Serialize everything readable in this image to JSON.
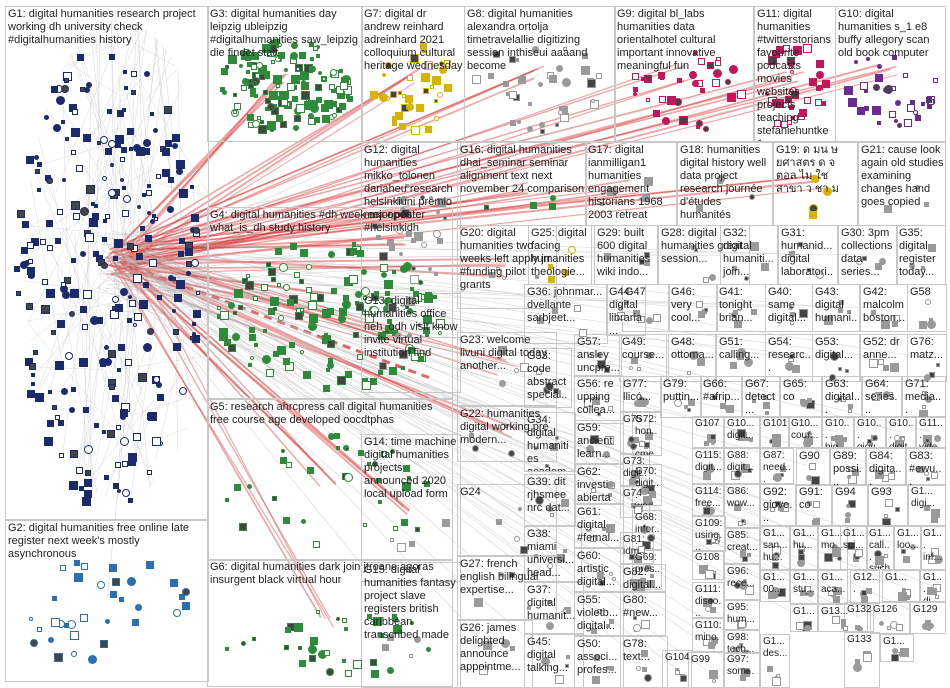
{
  "graph": {
    "type": "clustered-network",
    "groups": [
      {
        "id": "G1",
        "label": "G1: digital humanities research project working dh university check #digitalhumanities history",
        "density": "high",
        "palette": "navy"
      },
      {
        "id": "G2",
        "label": "G2: digital humanities free online late register next week's mostly asynchronous",
        "density": "medium",
        "palette": "blue"
      },
      {
        "id": "G3",
        "label": "G3: digital humanities day leipzig ubleipzig #digitalhumanities saw_leipzig die findet statt",
        "density": "high",
        "palette": "green"
      },
      {
        "id": "G4",
        "label": "G4: digital humanities #dh week ma open what_is_dh study history",
        "density": "high",
        "palette": "green"
      },
      {
        "id": "G5",
        "label": "G5: research ahrcpress call digital humanities free course age developed oocdtphas",
        "density": "medium",
        "palette": "green"
      },
      {
        "id": "G6",
        "label": "G6: digital humanities dark join jtroane agoras insurgent black virtual hour",
        "density": "medium",
        "palette": "green"
      },
      {
        "id": "G7",
        "label": "G7: digital dr andrew reinhard adreinhard 2021 colloquium cultural heritage wednesday",
        "density": "medium",
        "palette": "yellow"
      },
      {
        "id": "G8",
        "label": "G8: digital humanities alexandra ortolja timetravelallie digitizing session inthiseui aaaand become",
        "density": "medium",
        "palette": "grey"
      },
      {
        "id": "G9",
        "label": "G9: digital bl_labs humanities data orientalhotel cultural important innovative meaningful fun",
        "density": "medium",
        "palette": "pink"
      },
      {
        "id": "G10",
        "label": "G10: digital humanities s_1 e8 buffy allegory scan old book computer",
        "density": "medium",
        "palette": "purple"
      },
      {
        "id": "G11",
        "label": "G11: digital humanities #twitterstorians favourite podcasts movies websites projects teaching stefaniehuntke1",
        "density": "medium",
        "palette": "pink"
      },
      {
        "id": "G12",
        "label": "G12: digital humanities mikko_tolonen dariaheu research helsinkiuni premio mejor póster #helsinkidh",
        "density": "medium",
        "palette": "grey"
      },
      {
        "id": "G13",
        "label": "G13: digital humanities office neh_odh visit know invite virtual institution find",
        "density": "low",
        "palette": "grey"
      },
      {
        "id": "G14",
        "label": "G14: time machine digital humanities projects announced 2020 local upload form",
        "density": "low",
        "palette": "grey"
      },
      {
        "id": "G15",
        "label": "G15: digital humanities fantasy project slave registers british caribbean transcribed made",
        "density": "low",
        "palette": "grey"
      },
      {
        "id": "G16",
        "label": "G16: digital humanities dhai_seminar seminar alignment text next november 24 comparison",
        "density": "low",
        "palette": "green"
      },
      {
        "id": "G17",
        "label": "G17: digital ianmilligan1 humanities engagement historians 1968 2003 retreat",
        "density": "low",
        "palette": "grey"
      },
      {
        "id": "G18",
        "label": "G18: humanities digital history well data project research journée d'études humanités",
        "density": "low",
        "palette": "grey"
      },
      {
        "id": "G19",
        "label": "G19: ด มน ษยศาสตร ด จ ตอล ไม ใช สาขา ว ชา ม",
        "density": "low",
        "palette": "yellow"
      },
      {
        "id": "G20",
        "label": "G20: digital humanities two weeks left apply jrr #funding pilot grants",
        "density": "low",
        "palette": "grey"
      },
      {
        "id": "G21",
        "label": "G21: cause look again old studies examining changes hand goes copied",
        "density": "low",
        "palette": "grey"
      },
      {
        "id": "G22",
        "label": "G22: humanities digital working pre modern...",
        "density": "low",
        "palette": "grey"
      },
      {
        "id": "G23",
        "label": "G23: welcome livuni digital today another...",
        "density": "low",
        "palette": "grey"
      },
      {
        "id": "G24",
        "label": "G24",
        "density": "low",
        "palette": "grey"
      },
      {
        "id": "G25",
        "label": "G25: digital facing humanities theologie...",
        "density": "low",
        "palette": "yellow"
      },
      {
        "id": "G26",
        "label": "G26: james delighted announce appointme...",
        "density": "low",
        "palette": "grey"
      },
      {
        "id": "G27",
        "label": "G27: french english bilingual expertise...",
        "density": "low",
        "palette": "grey"
      },
      {
        "id": "G28",
        "label": "G28: digital humanities great session...",
        "density": "low",
        "palette": "grey"
      },
      {
        "id": "G29",
        "label": "G29: built 600 digital humanities wiki indo...",
        "density": "low",
        "palette": "grey"
      },
      {
        "id": "G30",
        "label": "G30: 3pm collections data series...",
        "density": "low",
        "palette": "grey"
      },
      {
        "id": "G31",
        "label": "G31: humanid... digital laboratori...",
        "density": "low",
        "palette": "grey"
      },
      {
        "id": "G32",
        "label": "G32: digital humaniti... join...",
        "density": "low",
        "palette": "grey"
      },
      {
        "id": "G33",
        "label": "G33: code abstract special...",
        "density": "low",
        "palette": "grey"
      },
      {
        "id": "G34",
        "label": "G34: digital humanities academ...",
        "density": "low",
        "palette": "grey"
      },
      {
        "id": "G35",
        "label": "G35: digital register today...",
        "density": "low",
        "palette": "grey"
      },
      {
        "id": "G36",
        "label": "G36: johnmar... dvellante sarbjeet...",
        "density": "low",
        "palette": "grey"
      },
      {
        "id": "G37",
        "label": "G37: digital humanit...",
        "density": "low",
        "palette": "grey"
      },
      {
        "id": "G38",
        "label": "G38: miami universi... head...",
        "density": "low",
        "palette": "grey"
      },
      {
        "id": "G39",
        "label": "G39: dit rjhsmee nrc dat...",
        "density": "low",
        "palette": "grey"
      },
      {
        "id": "G40",
        "label": "G40: same digital...",
        "density": "low",
        "palette": "grey"
      },
      {
        "id": "G41",
        "label": "G41: tonight brian...",
        "density": "low",
        "palette": "grey"
      },
      {
        "id": "G42",
        "label": "G42: malcolm boston...",
        "density": "low",
        "palette": "grey"
      },
      {
        "id": "G43",
        "label": "G43: digital humani...",
        "density": "low",
        "palette": "grey"
      },
      {
        "id": "G44",
        "label": "G44: digital libraria...",
        "density": "low",
        "palette": "grey"
      },
      {
        "id": "G45",
        "label": "G45: digital talking...",
        "density": "low",
        "palette": "grey"
      },
      {
        "id": "G46",
        "label": "G46: very cool...",
        "density": "low",
        "palette": "grey"
      },
      {
        "id": "G47",
        "label": "G47",
        "density": "low",
        "palette": "grey"
      },
      {
        "id": "G48",
        "label": "G48: ottoma...",
        "density": "low",
        "palette": "grey"
      },
      {
        "id": "G49",
        "label": "G49: course...",
        "density": "low",
        "palette": "grey"
      },
      {
        "id": "G50",
        "label": "G50: associ... profes...",
        "density": "low",
        "palette": "grey"
      },
      {
        "id": "G51",
        "label": "G51: calling...",
        "density": "low",
        "palette": "grey"
      },
      {
        "id": "G52",
        "label": "G52: dr anne...",
        "density": "low",
        "palette": "grey"
      },
      {
        "id": "G53",
        "label": "G53: digital...",
        "density": "low",
        "palette": "grey"
      },
      {
        "id": "G54",
        "label": "G54: researc...",
        "density": "low",
        "palette": "grey"
      },
      {
        "id": "G55",
        "label": "G55: violetb... digital...",
        "density": "low",
        "palette": "grey"
      },
      {
        "id": "G56",
        "label": "G56: re upping collea...",
        "density": "low",
        "palette": "grey"
      },
      {
        "id": "G57",
        "label": "G57: ansley uncpre...",
        "density": "low",
        "palette": "grey"
      },
      {
        "id": "G58",
        "label": "G58",
        "density": "low",
        "palette": "grey"
      },
      {
        "id": "G59",
        "label": "G59: ancient learn...",
        "density": "low",
        "palette": "grey"
      },
      {
        "id": "G60",
        "label": "G60: artistic digital...",
        "density": "low",
        "palette": "grey"
      },
      {
        "id": "G61",
        "label": "G61: digital #femal...",
        "density": "low",
        "palette": "grey"
      },
      {
        "id": "G62",
        "label": "G62: investi abierta",
        "density": "low",
        "palette": "grey"
      },
      {
        "id": "G63",
        "label": "G63: digital...",
        "density": "low",
        "palette": "grey"
      },
      {
        "id": "G64",
        "label": "G64: series...",
        "density": "low",
        "palette": "grey"
      },
      {
        "id": "G65",
        "label": "G65: co",
        "density": "low",
        "palette": "grey"
      },
      {
        "id": "G66",
        "label": "G66: #afrip...",
        "density": "low",
        "palette": "grey"
      },
      {
        "id": "G67",
        "label": "G67: detect...",
        "density": "low",
        "palette": "grey"
      },
      {
        "id": "G68",
        "label": "G68: infor... cont...",
        "density": "low",
        "palette": "grey"
      },
      {
        "id": "G69",
        "label": "G69: pres... rese...",
        "density": "low",
        "palette": "grey"
      },
      {
        "id": "G70",
        "label": "G70: digit... wed...",
        "density": "low",
        "palette": "grey"
      },
      {
        "id": "G71",
        "label": "G71: media...",
        "density": "low",
        "palette": "grey"
      },
      {
        "id": "G72",
        "label": "G72: hon... cme...",
        "density": "low",
        "palette": "grey"
      },
      {
        "id": "G73",
        "label": "G73: digit...",
        "density": "low",
        "palette": "grey"
      },
      {
        "id": "G74",
        "label": "G74",
        "density": "low",
        "palette": "grey"
      },
      {
        "id": "G75",
        "label": "G75",
        "density": "low",
        "palette": "grey"
      },
      {
        "id": "G76",
        "label": "G76: matz...",
        "density": "low",
        "palette": "grey"
      },
      {
        "id": "G77",
        "label": "G77: llicó...",
        "density": "low",
        "palette": "grey"
      },
      {
        "id": "G78",
        "label": "G78: text...",
        "density": "low",
        "palette": "grey"
      },
      {
        "id": "G79",
        "label": "G79: puttin...",
        "density": "low",
        "palette": "grey"
      },
      {
        "id": "G80",
        "label": "G80: #new...",
        "density": "low",
        "palette": "grey"
      },
      {
        "id": "G81",
        "label": "G81: idm...",
        "density": "low",
        "palette": "grey"
      },
      {
        "id": "G82",
        "label": "G82: digital...",
        "density": "low",
        "palette": "grey"
      },
      {
        "id": "G83",
        "label": "G83: #ewu...",
        "density": "low",
        "palette": "grey"
      },
      {
        "id": "G84",
        "label": "G84: digita...",
        "density": "low",
        "palette": "grey"
      },
      {
        "id": "G85",
        "label": "G85: creat...",
        "density": "low",
        "palette": "grey"
      },
      {
        "id": "G86",
        "label": "G86: wow...",
        "density": "low",
        "palette": "grey"
      },
      {
        "id": "G87",
        "label": "G87: need...",
        "density": "low",
        "palette": "grey"
      },
      {
        "id": "G88",
        "label": "G88: digit...",
        "density": "low",
        "palette": "grey"
      },
      {
        "id": "G89",
        "label": "G89: possi...",
        "density": "low",
        "palette": "grey"
      },
      {
        "id": "G90",
        "label": "G90",
        "density": "low",
        "palette": "grey"
      },
      {
        "id": "G91",
        "label": "G91: co",
        "density": "low",
        "palette": "grey"
      },
      {
        "id": "G92",
        "label": "G92: giove...",
        "density": "low",
        "palette": "grey"
      },
      {
        "id": "G93",
        "label": "G93",
        "density": "low",
        "palette": "grey"
      },
      {
        "id": "G94",
        "label": "G94",
        "density": "low",
        "palette": "grey"
      },
      {
        "id": "G95",
        "label": "G95: hum...",
        "density": "low",
        "palette": "grey"
      },
      {
        "id": "G96",
        "label": "G96: rece...",
        "density": "low",
        "palette": "grey"
      },
      {
        "id": "G97",
        "label": "G97: som...",
        "density": "low",
        "palette": "grey"
      },
      {
        "id": "G98",
        "label": "G98: tech...",
        "density": "low",
        "palette": "grey"
      },
      {
        "id": "G99",
        "label": "G99",
        "density": "low",
        "palette": "grey"
      },
      {
        "id": "G100",
        "label": "G10... cour...",
        "density": "low",
        "palette": "grey"
      },
      {
        "id": "G101",
        "label": "G101",
        "density": "low",
        "palette": "grey"
      },
      {
        "id": "G102",
        "label": "G10... digit...",
        "density": "low",
        "palette": "grey"
      },
      {
        "id": "G103",
        "label": "G10... giov...",
        "density": "low",
        "palette": "grey"
      },
      {
        "id": "G104",
        "label": "G104",
        "density": "low",
        "palette": "grey"
      },
      {
        "id": "G105",
        "label": "G10... big...",
        "density": "low",
        "palette": "grey"
      },
      {
        "id": "G106",
        "label": "G10... digit...",
        "density": "low",
        "palette": "grey"
      },
      {
        "id": "G107",
        "label": "G107",
        "density": "low",
        "palette": "grey"
      },
      {
        "id": "G108",
        "label": "G108",
        "density": "low",
        "palette": "grey"
      },
      {
        "id": "G109",
        "label": "G109: using...",
        "density": "low",
        "palette": "grey"
      },
      {
        "id": "G110",
        "label": "G110: mino...",
        "density": "low",
        "palette": "grey"
      },
      {
        "id": "G111",
        "label": "G111: disco...",
        "density": "low",
        "palette": "grey"
      },
      {
        "id": "G112",
        "label": "G11... vide...",
        "density": "low",
        "palette": "grey"
      },
      {
        "id": "G113",
        "label": "G1... digi...",
        "density": "low",
        "palette": "grey"
      },
      {
        "id": "G114",
        "label": "G114: free...",
        "density": "low",
        "palette": "grey"
      },
      {
        "id": "G115",
        "label": "G115: digit...",
        "density": "low",
        "palette": "grey"
      },
      {
        "id": "G116",
        "label": "G1... san... hu...",
        "density": "low",
        "palette": "grey"
      },
      {
        "id": "G117",
        "label": "G1... hu...",
        "density": "low",
        "palette": "grey"
      },
      {
        "id": "G118",
        "label": "G1... mo...",
        "density": "low",
        "palette": "grey"
      },
      {
        "id": "G119",
        "label": "G1... call... such",
        "density": "low",
        "palette": "grey"
      },
      {
        "id": "G120",
        "label": "G1... sci...",
        "density": "low",
        "palette": "grey"
      },
      {
        "id": "G121",
        "label": "G1... loo...",
        "density": "low",
        "palette": "grey"
      },
      {
        "id": "G122",
        "label": "G1... inf...",
        "density": "low",
        "palette": "grey"
      },
      {
        "id": "G123",
        "label": "G1... di...",
        "density": "low",
        "palette": "grey"
      },
      {
        "id": "G124",
        "label": "G1... 00...",
        "density": "low",
        "palette": "grey"
      },
      {
        "id": "G125",
        "label": "G1... stu...",
        "density": "low",
        "palette": "grey"
      },
      {
        "id": "G126",
        "label": "G126",
        "density": "low",
        "palette": "grey"
      },
      {
        "id": "G127",
        "label": "G1... aca...",
        "density": "low",
        "palette": "grey"
      },
      {
        "id": "G128",
        "label": "G12...",
        "density": "low",
        "palette": "grey"
      },
      {
        "id": "G129",
        "label": "G129",
        "density": "low",
        "palette": "grey"
      },
      {
        "id": "G130",
        "label": "G1... des...",
        "density": "low",
        "palette": "grey"
      },
      {
        "id": "G131",
        "label": "G13...",
        "density": "low",
        "palette": "grey"
      },
      {
        "id": "G132",
        "label": "G132",
        "density": "low",
        "palette": "grey"
      },
      {
        "id": "G133",
        "label": "G133",
        "density": "low",
        "palette": "grey"
      },
      {
        "id": "G134",
        "label": "G1...",
        "density": "low",
        "palette": "grey"
      },
      {
        "id": "G135",
        "label": "G1...",
        "density": "low",
        "palette": "grey"
      },
      {
        "id": "G136",
        "label": "G1...",
        "density": "low",
        "palette": "grey"
      }
    ],
    "colors": {
      "navy": "#1a2a6b",
      "blue": "#2a6fb0",
      "green": "#2e8b3a",
      "yellow": "#d6b400",
      "grey": "#9a9a9a",
      "pink": "#c2185b",
      "purple": "#6a2c91",
      "edge_red": "#d93636",
      "edge_grey": "#b8b8b8"
    }
  }
}
